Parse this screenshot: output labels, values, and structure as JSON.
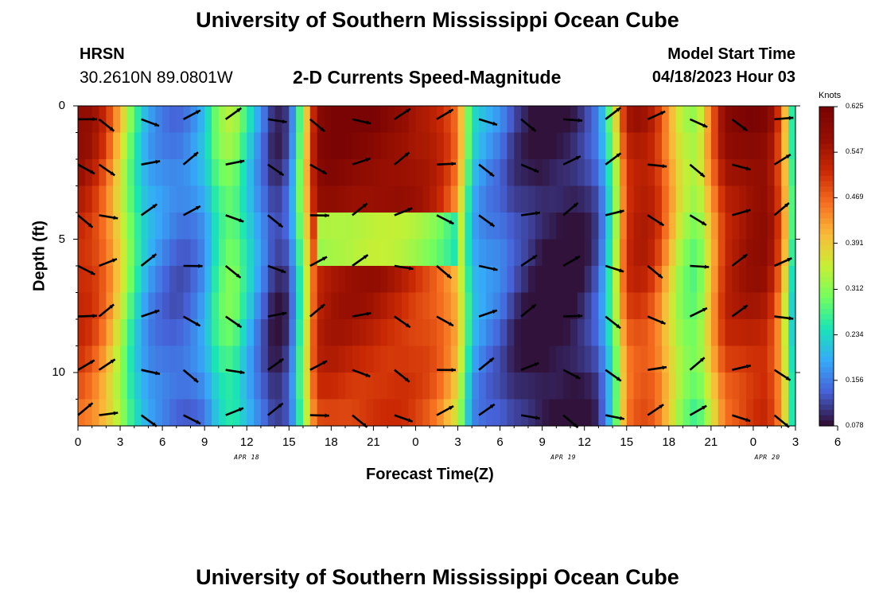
{
  "header": {
    "title": "University of Southern Mississippi Ocean Cube",
    "station": "HRSN",
    "coords": "30.2610N  89.0801W",
    "subtitle": "2-D Currents Speed-Magnitude",
    "model_start_label": "Model Start Time",
    "model_start_value": "04/18/2023 Hour 03"
  },
  "footer": {
    "title": "University of Southern Mississippi Ocean Cube"
  },
  "chart_data": {
    "type": "heatmap",
    "xlabel": "Forecast Time(Z)",
    "ylabel": "Depth (ft)",
    "colorbar_unit": "Knots",
    "colorbar_ticks": [
      "0.625",
      "0.547",
      "0.469",
      "0.391",
      "0.312",
      "0.234",
      "0.156",
      "0.078"
    ],
    "colorbar_range": [
      0.078,
      0.625
    ],
    "x_hours_range": [
      0,
      51
    ],
    "x_tick_labels": [
      "0",
      "3",
      "6",
      "9",
      "12",
      "15",
      "18",
      "21",
      "0",
      "3",
      "6",
      "9",
      "12",
      "15",
      "18",
      "21",
      "0",
      "3",
      "6"
    ],
    "date_labels": [
      {
        "label": "APR 18",
        "hour": 12
      },
      {
        "label": "APR 19",
        "hour": 34.5
      },
      {
        "label": "APR 20",
        "hour": 49
      }
    ],
    "y_range_ft": [
      0,
      12
    ],
    "y_reversed": true,
    "y_tick_labels": [
      "0",
      "5",
      "10"
    ],
    "y_tick_values": [
      0,
      5,
      10
    ],
    "depth_rows_ft": [
      0,
      1,
      2,
      3,
      4,
      5,
      6,
      7,
      8,
      9,
      10,
      11,
      12
    ],
    "speed_profile_surface": [
      {
        "h": 0,
        "v": 0.58
      },
      {
        "h": 1,
        "v": 0.56
      },
      {
        "h": 2,
        "v": 0.5
      },
      {
        "h": 3,
        "v": 0.4
      },
      {
        "h": 4,
        "v": 0.28
      },
      {
        "h": 5,
        "v": 0.2
      },
      {
        "h": 6,
        "v": 0.17
      },
      {
        "h": 7,
        "v": 0.15
      },
      {
        "h": 8,
        "v": 0.16
      },
      {
        "h": 9,
        "v": 0.2
      },
      {
        "h": 10,
        "v": 0.3
      },
      {
        "h": 11,
        "v": 0.33
      },
      {
        "h": 12,
        "v": 0.25
      },
      {
        "h": 13,
        "v": 0.17
      },
      {
        "h": 14,
        "v": 0.1
      },
      {
        "h": 15,
        "v": 0.13
      },
      {
        "h": 16,
        "v": 0.35
      },
      {
        "h": 17,
        "v": 0.6
      },
      {
        "h": 18,
        "v": 0.62
      },
      {
        "h": 19,
        "v": 0.62
      },
      {
        "h": 20,
        "v": 0.62
      },
      {
        "h": 21,
        "v": 0.62
      },
      {
        "h": 22,
        "v": 0.61
      },
      {
        "h": 23,
        "v": 0.6
      },
      {
        "h": 24,
        "v": 0.58
      },
      {
        "h": 25,
        "v": 0.56
      },
      {
        "h": 26,
        "v": 0.52
      },
      {
        "h": 27,
        "v": 0.45
      },
      {
        "h": 28,
        "v": 0.22
      },
      {
        "h": 29,
        "v": 0.18
      },
      {
        "h": 30,
        "v": 0.16
      },
      {
        "h": 31,
        "v": 0.12
      },
      {
        "h": 32,
        "v": 0.1
      },
      {
        "h": 33,
        "v": 0.08
      },
      {
        "h": 34,
        "v": 0.08
      },
      {
        "h": 35,
        "v": 0.08
      },
      {
        "h": 36,
        "v": 0.1
      },
      {
        "h": 37,
        "v": 0.14
      },
      {
        "h": 38,
        "v": 0.3
      },
      {
        "h": 39,
        "v": 0.55
      },
      {
        "h": 40,
        "v": 0.58
      },
      {
        "h": 41,
        "v": 0.55
      },
      {
        "h": 42,
        "v": 0.45
      },
      {
        "h": 43,
        "v": 0.35
      },
      {
        "h": 44,
        "v": 0.32
      },
      {
        "h": 45,
        "v": 0.45
      },
      {
        "h": 46,
        "v": 0.58
      },
      {
        "h": 47,
        "v": 0.6
      },
      {
        "h": 48,
        "v": 0.62
      },
      {
        "h": 49,
        "v": 0.62
      },
      {
        "h": 50,
        "v": 0.5
      },
      {
        "h": 51,
        "v": 0.2
      }
    ],
    "arrow_columns_hours": [
      0,
      1.5,
      4.5,
      7.5,
      10.5,
      13.5,
      16.5,
      19.5,
      22.5,
      25.5,
      28.5,
      31.5,
      34.5,
      37.5,
      40.5,
      43.5,
      46.5,
      49.5
    ]
  }
}
